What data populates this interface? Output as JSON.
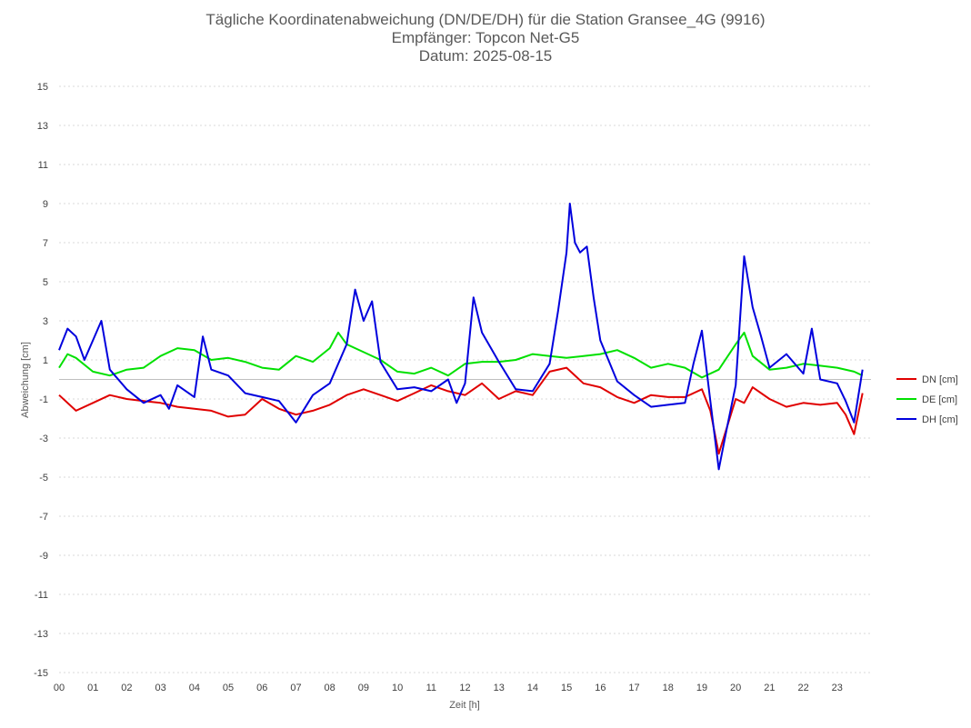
{
  "chart_data": {
    "type": "line",
    "title_lines": [
      "Tägliche Koordinatenabweichung (DN/DE/DH) für die Station Gransee_4G (9916)",
      "Empfänger: Topcon Net-G5",
      "Datum: 2025-08-15"
    ],
    "xlabel": "Zeit [h]",
    "ylabel": "Abweichung [cm]",
    "xlim": [
      0,
      24
    ],
    "ylim": [
      -15,
      15
    ],
    "x_ticks": [
      "00",
      "01",
      "02",
      "03",
      "04",
      "05",
      "06",
      "07",
      "08",
      "09",
      "10",
      "11",
      "12",
      "13",
      "14",
      "15",
      "16",
      "17",
      "18",
      "19",
      "20",
      "21",
      "22",
      "23"
    ],
    "y_ticks": [
      15,
      13,
      11,
      9,
      7,
      5,
      3,
      1,
      -1,
      -3,
      -5,
      -7,
      -9,
      -11,
      -13,
      -15
    ],
    "grid": true,
    "legend_position": "right",
    "series": [
      {
        "name": "DN [cm]",
        "color": "#e00000",
        "x": [
          0,
          0.5,
          1,
          1.5,
          2,
          2.5,
          3,
          3.5,
          4,
          4.5,
          5,
          5.5,
          6,
          6.5,
          7,
          7.5,
          8,
          8.5,
          9,
          9.5,
          10,
          10.5,
          11,
          11.5,
          12,
          12.5,
          13,
          13.5,
          14,
          14.5,
          15,
          15.5,
          16,
          16.5,
          17,
          17.5,
          18,
          18.5,
          19,
          19.25,
          19.5,
          19.75,
          20,
          20.25,
          20.5,
          21,
          21.5,
          22,
          22.5,
          23,
          23.25,
          23.5,
          23.75
        ],
        "values": [
          -0.8,
          -1.6,
          -1.2,
          -0.8,
          -1.0,
          -1.1,
          -1.2,
          -1.4,
          -1.5,
          -1.6,
          -1.9,
          -1.8,
          -1.0,
          -1.5,
          -1.8,
          -1.6,
          -1.3,
          -0.8,
          -0.5,
          -0.8,
          -1.1,
          -0.7,
          -0.3,
          -0.6,
          -0.8,
          -0.2,
          -1.0,
          -0.6,
          -0.8,
          0.4,
          0.6,
          -0.2,
          -0.4,
          -0.9,
          -1.2,
          -0.8,
          -0.9,
          -0.9,
          -0.5,
          -1.6,
          -3.8,
          -2.4,
          -1.0,
          -1.2,
          -0.4,
          -1.0,
          -1.4,
          -1.2,
          -1.3,
          -1.2,
          -1.8,
          -2.8,
          -0.7
        ]
      },
      {
        "name": "DE [cm]",
        "color": "#00e000",
        "x": [
          0,
          0.25,
          0.5,
          1,
          1.5,
          2,
          2.5,
          3,
          3.5,
          4,
          4.5,
          5,
          5.5,
          6,
          6.5,
          7,
          7.5,
          8,
          8.25,
          8.5,
          9,
          9.5,
          10,
          10.5,
          11,
          11.5,
          12,
          12.5,
          13,
          13.5,
          14,
          14.5,
          15,
          15.5,
          16,
          16.5,
          17,
          17.5,
          18,
          18.5,
          19,
          19.5,
          20,
          20.25,
          20.5,
          21,
          21.5,
          22,
          22.5,
          23,
          23.5,
          23.75
        ],
        "values": [
          0.6,
          1.3,
          1.1,
          0.4,
          0.2,
          0.5,
          0.6,
          1.2,
          1.6,
          1.5,
          1.0,
          1.1,
          0.9,
          0.6,
          0.5,
          1.2,
          0.9,
          1.6,
          2.4,
          1.8,
          1.4,
          1.0,
          0.4,
          0.3,
          0.6,
          0.2,
          0.8,
          0.9,
          0.9,
          1.0,
          1.3,
          1.2,
          1.1,
          1.2,
          1.3,
          1.5,
          1.1,
          0.6,
          0.8,
          0.6,
          0.1,
          0.5,
          1.8,
          2.4,
          1.2,
          0.5,
          0.6,
          0.8,
          0.7,
          0.6,
          0.4,
          0.2
        ]
      },
      {
        "name": "DH [cm]",
        "color": "#0000dd",
        "x": [
          0,
          0.25,
          0.5,
          0.75,
          1,
          1.25,
          1.5,
          2,
          2.5,
          3,
          3.25,
          3.5,
          4,
          4.25,
          4.5,
          5,
          5.5,
          6,
          6.5,
          7,
          7.5,
          8,
          8.5,
          8.75,
          9,
          9.25,
          9.5,
          10,
          10.5,
          11,
          11.5,
          11.75,
          12,
          12.25,
          12.5,
          13,
          13.5,
          14,
          14.5,
          14.75,
          15,
          15.1,
          15.25,
          15.4,
          15.6,
          15.8,
          16,
          16.5,
          17,
          17.5,
          18,
          18.5,
          18.75,
          19,
          19.25,
          19.5,
          19.75,
          20,
          20.25,
          20.5,
          20.75,
          21,
          21.5,
          22,
          22.25,
          22.5,
          23,
          23.25,
          23.5,
          23.75
        ],
        "values": [
          1.5,
          2.6,
          2.2,
          1.0,
          2.0,
          3.0,
          0.5,
          -0.5,
          -1.2,
          -0.8,
          -1.5,
          -0.3,
          -0.9,
          2.2,
          0.5,
          0.2,
          -0.7,
          -0.9,
          -1.1,
          -2.2,
          -0.8,
          -0.2,
          1.8,
          4.6,
          3.0,
          4.0,
          0.9,
          -0.5,
          -0.4,
          -0.6,
          0.0,
          -1.2,
          -0.2,
          4.2,
          2.4,
          0.9,
          -0.5,
          -0.6,
          0.8,
          3.5,
          6.5,
          9.0,
          7.0,
          6.5,
          6.8,
          4.2,
          2.0,
          -0.1,
          -0.8,
          -1.4,
          -1.3,
          -1.2,
          0.8,
          2.5,
          -1.1,
          -4.6,
          -2.4,
          -0.3,
          6.3,
          3.7,
          2.2,
          0.6,
          1.3,
          0.3,
          2.6,
          0.0,
          -0.2,
          -1.1,
          -2.2,
          0.5
        ]
      }
    ]
  }
}
